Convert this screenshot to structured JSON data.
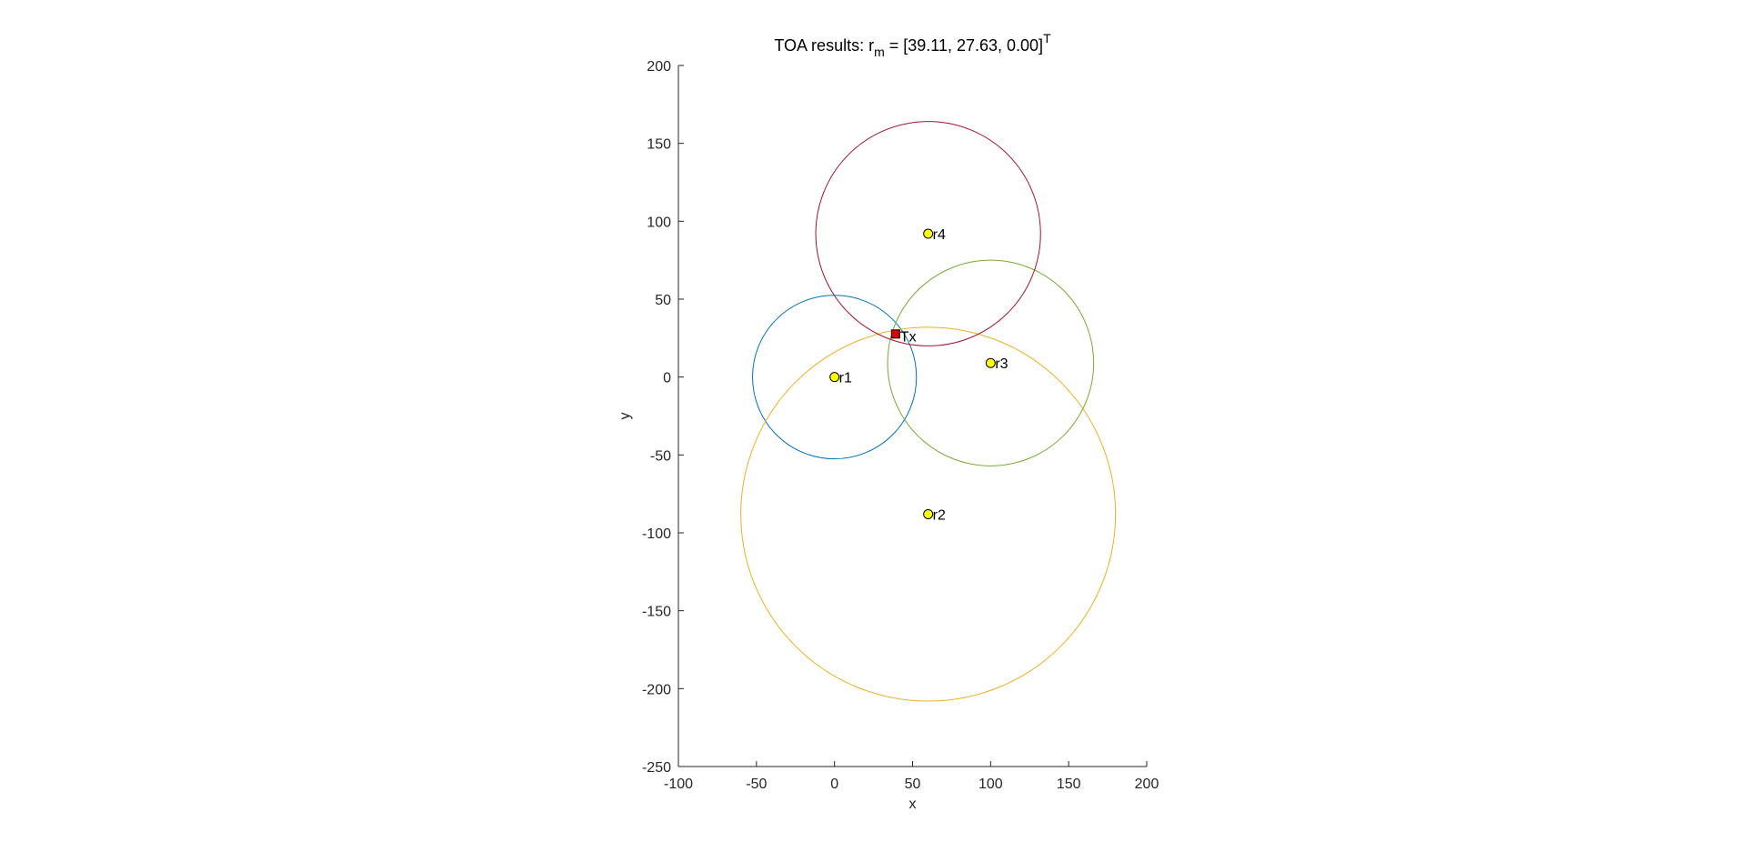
{
  "chart_data": {
    "type": "scatter",
    "title": {
      "prefix": "TOA results: r",
      "subscript": "m",
      "middle": " = [39.11, 27.63, 0.00]",
      "superscript": "T"
    },
    "xlabel": "x",
    "ylabel": "y",
    "xlim": [
      -100,
      200
    ],
    "ylim": [
      -250,
      200
    ],
    "xticks": [
      -100,
      -50,
      0,
      50,
      100,
      150,
      200
    ],
    "yticks": [
      -250,
      -200,
      -150,
      -100,
      -50,
      0,
      50,
      100,
      150,
      200
    ],
    "grid": false,
    "aspect": "equal",
    "receivers": [
      {
        "label": "r1",
        "x": 0,
        "y": 0
      },
      {
        "label": "r2",
        "x": 60,
        "y": -88
      },
      {
        "label": "r3",
        "x": 100,
        "y": 9
      },
      {
        "label": "r4",
        "x": 60,
        "y": 92
      }
    ],
    "circles": [
      {
        "center": "r1",
        "cx": 0,
        "cy": 0,
        "r": 52.5,
        "color": "#0072BD"
      },
      {
        "center": "r2",
        "cx": 60,
        "cy": -88,
        "r": 120,
        "color": "#EDB120"
      },
      {
        "center": "r3",
        "cx": 100,
        "cy": 9,
        "r": 66,
        "color": "#77AC30"
      },
      {
        "center": "r4",
        "cx": 60,
        "cy": 92,
        "r": 72,
        "color": "#A2142F"
      }
    ],
    "transmitter": {
      "label": "Tx",
      "x": 39.11,
      "y": 27.63,
      "color": "#E00000"
    },
    "receiver_marker_color": "#FFFF00"
  }
}
